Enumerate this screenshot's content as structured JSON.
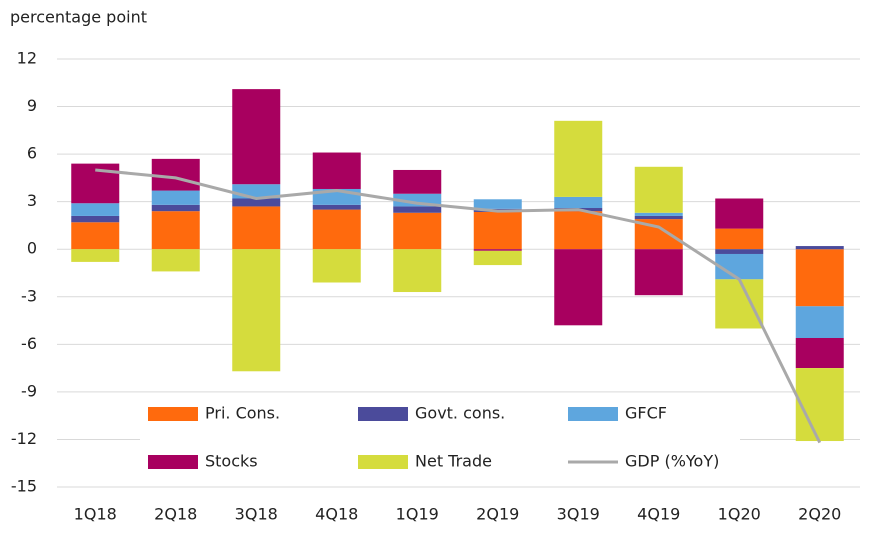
{
  "chart_data": {
    "type": "bar",
    "stacked": true,
    "y_label": "percentage point",
    "categories": [
      "1Q18",
      "2Q18",
      "3Q18",
      "4Q18",
      "1Q19",
      "2Q19",
      "3Q19",
      "4Q19",
      "1Q20",
      "2Q20"
    ],
    "series": [
      {
        "name": "Pri. Cons.",
        "color": "#ff6a0d",
        "values": [
          1.7,
          2.4,
          2.7,
          2.5,
          2.3,
          2.35,
          2.4,
          1.9,
          1.3,
          -3.6
        ]
      },
      {
        "name": "Govt. cons.",
        "color": "#4b4b9b",
        "values": [
          0.4,
          0.4,
          0.5,
          0.3,
          0.4,
          0.2,
          0.2,
          0.2,
          -0.3,
          0.2
        ]
      },
      {
        "name": "GFCF",
        "color": "#5ea6de",
        "values": [
          0.8,
          0.9,
          0.9,
          1.0,
          0.8,
          0.6,
          0.7,
          0.2,
          -1.6,
          -2.0
        ]
      },
      {
        "name": "Stocks",
        "color": "#a8005f",
        "values": [
          2.5,
          2.0,
          6.0,
          2.3,
          1.5,
          -0.1,
          -4.8,
          -2.9,
          1.9,
          -1.9
        ]
      },
      {
        "name": "Net Trade",
        "color": "#d5dc3d",
        "values": [
          -0.8,
          -1.4,
          -7.7,
          -2.1,
          -2.7,
          -0.9,
          4.8,
          2.9,
          -3.1,
          -4.6
        ]
      }
    ],
    "line": {
      "name": "GDP (%YoY)",
      "color": "#a9a9a9",
      "values": [
        5.0,
        4.5,
        3.2,
        3.7,
        2.9,
        2.4,
        2.5,
        1.4,
        -1.9,
        -12.2
      ]
    },
    "ylim": [
      -15,
      12
    ],
    "yticks": [
      -15,
      -12,
      -9,
      -6,
      -3,
      0,
      3,
      6,
      9,
      12
    ],
    "grid": true
  }
}
